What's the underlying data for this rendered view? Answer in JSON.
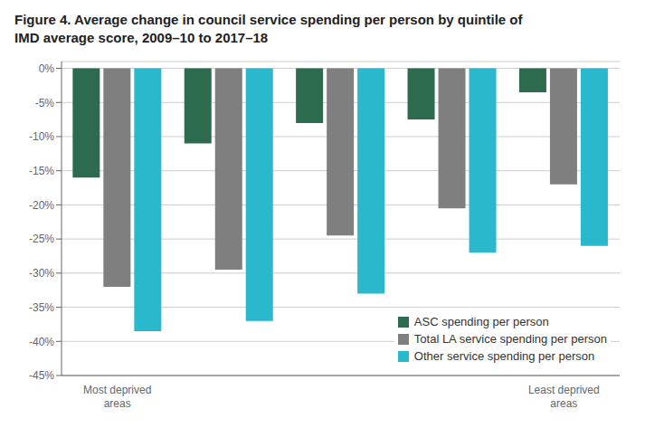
{
  "chart_data": {
    "type": "bar",
    "title": "Figure 4. Average change in council service spending per person by quintile of\nIMD average score, 2009–10 to 2017–18",
    "categories": [
      "Most deprived\nareas",
      null,
      null,
      null,
      "Least deprived\nareas"
    ],
    "series": [
      {
        "name": "ASC spending per person",
        "color": "#2d6b4f",
        "values": [
          -16.0,
          -11.0,
          -8.0,
          -7.5,
          -3.5
        ]
      },
      {
        "name": "Total LA service spending per person",
        "color": "#7f7f7f",
        "values": [
          -32.0,
          -29.5,
          -24.5,
          -20.5,
          -17.0
        ]
      },
      {
        "name": "Other service spending per person",
        "color": "#29b8cc",
        "values": [
          -38.5,
          -37.0,
          -33.0,
          -27.0,
          -26.0
        ]
      }
    ],
    "ylim": [
      -45,
      1
    ],
    "yticks": [
      {
        "value": 0,
        "label": "0%"
      },
      {
        "value": -5,
        "label": "-5%"
      },
      {
        "value": -10,
        "label": "-10%"
      },
      {
        "value": -15,
        "label": "-15%"
      },
      {
        "value": -20,
        "label": "-20%"
      },
      {
        "value": -25,
        "label": "-25%"
      },
      {
        "value": -30,
        "label": "-30%"
      },
      {
        "value": -35,
        "label": "-35%"
      },
      {
        "value": -40,
        "label": "-40%"
      },
      {
        "value": -45,
        "label": "-45%"
      }
    ],
    "grid": true,
    "legend": "lower right"
  }
}
